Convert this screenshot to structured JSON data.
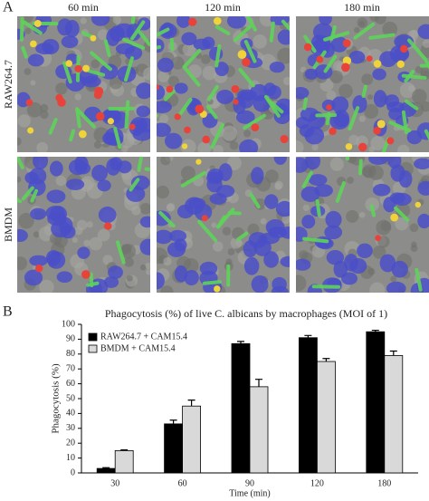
{
  "panel_a": {
    "label": "A",
    "columns": [
      "60 min",
      "120 min",
      "180 min"
    ],
    "rows": [
      "RAW264.7",
      "BMDM"
    ]
  },
  "chart_data": {
    "type": "bar",
    "panel_label": "B",
    "title": "Phagocytosis (%) of live C. albicans by macrophages (MOI of 1)",
    "x_label": "Time (min)",
    "y_label": "Phagocytosis (%)",
    "categories": [
      "30",
      "60",
      "90",
      "120",
      "180"
    ],
    "series": [
      {
        "name": "RAW264.7 + CAM15.4",
        "color": "#000000",
        "values": [
          3,
          33,
          87,
          91,
          95
        ],
        "errors": [
          0.5,
          2.5,
          1.5,
          1.5,
          1
        ]
      },
      {
        "name": "BMDM + CAM15.4",
        "color": "#d9d9d9",
        "values": [
          15,
          45,
          58,
          75,
          79
        ],
        "errors": [
          0.5,
          4,
          5,
          2,
          3
        ]
      }
    ],
    "ylim": [
      0,
      100
    ],
    "yticks": [
      0,
      10,
      20,
      30,
      40,
      50,
      60,
      70,
      80,
      90,
      100
    ],
    "legend": "upper left",
    "grid": false
  }
}
